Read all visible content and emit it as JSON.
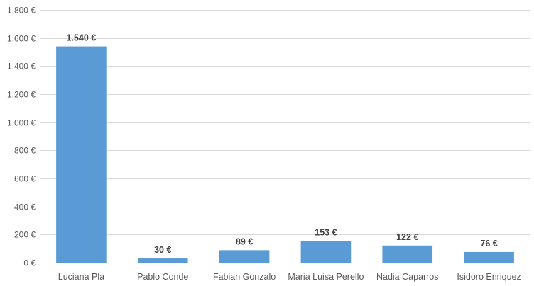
{
  "chart_data": {
    "type": "bar",
    "categories": [
      "Luciana Pla",
      "Pablo Conde",
      "Fabian Gonzalo",
      "Maria Luisa Perello",
      "Nadia Caparros",
      "Isidoro Enriquez"
    ],
    "values": [
      1540,
      30,
      89,
      153,
      122,
      76
    ],
    "data_labels": [
      "1.540 €",
      "30 €",
      "89 €",
      "153 €",
      "122 €",
      "76 €"
    ],
    "y_ticks": [
      0,
      200,
      400,
      600,
      800,
      1000,
      1200,
      1400,
      1600,
      1800
    ],
    "y_tick_labels": [
      "0 €",
      "200 €",
      "400 €",
      "600 €",
      "800 €",
      "1.000 €",
      "1.200 €",
      "1.400 €",
      "1.600 €",
      "1.800 €"
    ],
    "ylim": [
      0,
      1800
    ],
    "title": "",
    "xlabel": "",
    "ylabel": "",
    "grid": true,
    "legend": "none",
    "bar_color": "#5b9bd5"
  }
}
